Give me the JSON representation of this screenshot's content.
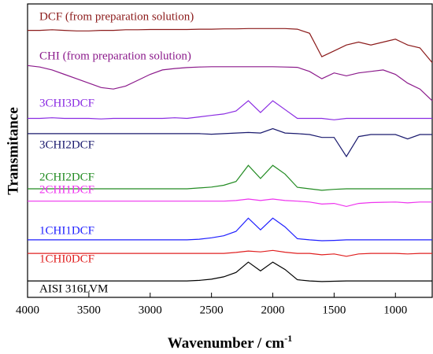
{
  "chart_data": {
    "type": "line",
    "ylabel": "Transmitance",
    "xlabel": "Wavenumber / cm",
    "xlabel_superscript": "-1",
    "xlim": [
      4000,
      700
    ],
    "ylim": [
      0,
      100
    ],
    "xticks": [
      4000,
      3500,
      3000,
      2500,
      2000,
      1500,
      1000
    ],
    "x": [
      4000,
      3900,
      3800,
      3700,
      3600,
      3500,
      3400,
      3300,
      3200,
      3100,
      3000,
      2900,
      2800,
      2700,
      2600,
      2500,
      2400,
      2300,
      2200,
      2100,
      2000,
      1900,
      1800,
      1700,
      1600,
      1500,
      1400,
      1300,
      1200,
      1100,
      1000,
      900,
      800,
      700
    ],
    "series": [
      {
        "name": "DCF (from preparation solution)",
        "color": "#8b1a1a",
        "values": [
          91,
          91,
          91.2,
          91,
          90.8,
          90.8,
          91,
          91,
          91.2,
          91.2,
          91.3,
          91.3,
          91.3,
          91.3,
          91.4,
          91.4,
          91.5,
          91.5,
          91.6,
          91.6,
          91.6,
          91.6,
          91.4,
          90,
          82,
          84,
          86,
          87,
          86,
          87,
          88,
          86,
          85,
          80
        ]
      },
      {
        "name": "CHI (from preparation solution)",
        "color": "#8b1a8b",
        "values": [
          79,
          78.5,
          77.5,
          76,
          74.5,
          73,
          71.5,
          71,
          72,
          74,
          76,
          77.5,
          78,
          78.3,
          78.5,
          78.6,
          78.6,
          78.6,
          78.6,
          78.6,
          78.6,
          78.5,
          78.4,
          77,
          74.5,
          76.5,
          75.5,
          76.5,
          77,
          77.5,
          76,
          73,
          71,
          67
        ]
      },
      {
        "name": "3CHI3DCF",
        "color": "#8a2be2",
        "values": [
          61,
          61,
          61.2,
          61,
          61,
          61,
          60.8,
          61,
          61,
          61,
          61,
          61,
          61.2,
          61,
          61.5,
          62,
          62.5,
          63.5,
          67,
          63,
          67,
          64,
          61,
          61,
          61,
          60.5,
          61,
          61,
          61,
          61,
          61,
          61,
          61,
          61
        ]
      },
      {
        "name": "3CHI2DCF",
        "color": "#1a1a6e",
        "values": [
          55.8,
          55.8,
          55.8,
          55.8,
          55.8,
          55.8,
          55.8,
          55.8,
          55.8,
          55.8,
          55.8,
          55.8,
          55.8,
          55.8,
          55.8,
          55.6,
          55.8,
          56,
          56.2,
          56,
          57.5,
          56,
          55.8,
          55.5,
          54.5,
          54.5,
          48,
          54.8,
          55.5,
          55.5,
          55.5,
          54,
          55.5,
          55.5
        ]
      },
      {
        "name": "2CHI2DCF",
        "color": "#228b22",
        "values": [
          37,
          37,
          37,
          37,
          37,
          37,
          37,
          37,
          37,
          37,
          37,
          37,
          37,
          37,
          37.3,
          37.6,
          38.2,
          39.5,
          45,
          40.5,
          45,
          42,
          37.5,
          37,
          36.5,
          36.8,
          37,
          37,
          37,
          37,
          37,
          37,
          37,
          37
        ]
      },
      {
        "name": "2CHI1DCF",
        "color": "#ee33ee",
        "values": [
          32.8,
          32.8,
          32.8,
          32.8,
          32.8,
          32.8,
          32.8,
          32.8,
          32.8,
          32.8,
          32.8,
          32.8,
          32.8,
          32.8,
          32.8,
          32.8,
          32.8,
          33,
          33.5,
          33,
          33.5,
          33,
          32.8,
          32.5,
          31.8,
          32,
          31,
          32,
          32.3,
          32.4,
          32.5,
          32.2,
          32.5,
          32.5
        ]
      },
      {
        "name": "1CHI1DCF",
        "color": "#1f1fff",
        "values": [
          19.6,
          19.6,
          19.6,
          19.6,
          19.6,
          19.6,
          19.6,
          19.6,
          19.6,
          19.6,
          19.6,
          19.6,
          19.6,
          19.6,
          19.8,
          20.3,
          21,
          22.5,
          27,
          23,
          27,
          24,
          20,
          19.6,
          19.3,
          19.4,
          19.6,
          19.6,
          19.6,
          19.6,
          19.6,
          19.6,
          19.6,
          19.6
        ]
      },
      {
        "name": "1CHI0DCF",
        "color": "#e02020",
        "values": [
          15,
          15,
          15,
          15,
          15,
          15,
          15,
          15,
          15,
          15,
          15,
          15,
          15,
          15,
          15,
          15,
          15,
          15.3,
          15.8,
          15.5,
          16,
          15.4,
          15,
          15,
          14.5,
          14.8,
          14,
          14.8,
          15,
          15,
          15,
          14.8,
          15,
          15
        ]
      },
      {
        "name": "AISI 316LVM",
        "color": "#000000",
        "values": [
          5.6,
          5.6,
          5.6,
          5.6,
          5.6,
          5.6,
          5.6,
          5.6,
          5.6,
          5.6,
          5.6,
          5.6,
          5.6,
          5.6,
          5.8,
          6.2,
          7,
          8.5,
          12,
          9,
          12,
          9.5,
          6,
          5.6,
          5.4,
          5.5,
          5.6,
          5.6,
          5.6,
          5.6,
          5.6,
          5.6,
          5.6,
          5.6
        ]
      }
    ]
  }
}
